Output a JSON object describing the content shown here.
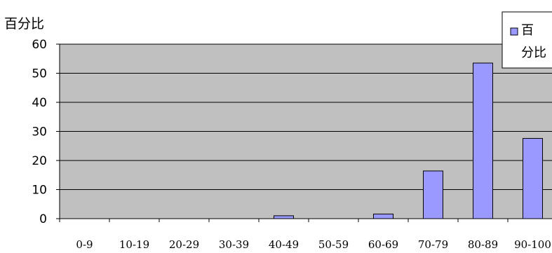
{
  "chart_data": {
    "type": "bar",
    "ylabel": "百分比",
    "xlabel": "",
    "title": "",
    "categories": [
      "0-9",
      "10-19",
      "20-29",
      "30-39",
      "40-49",
      "50-59",
      "60-69",
      "70-79",
      "80-89",
      "90-100"
    ],
    "series": [
      {
        "name": "百分比",
        "values": [
          0,
          0,
          0,
          0,
          1,
          0,
          1.6,
          16.4,
          53.5,
          27.6
        ],
        "color": "#9999ff"
      }
    ],
    "ylim": [
      0,
      60
    ],
    "yticks": [
      0,
      10,
      20,
      30,
      40,
      50,
      60
    ],
    "grid": true,
    "plot_background": "#c0c0c0",
    "legend_position": "top-right"
  }
}
